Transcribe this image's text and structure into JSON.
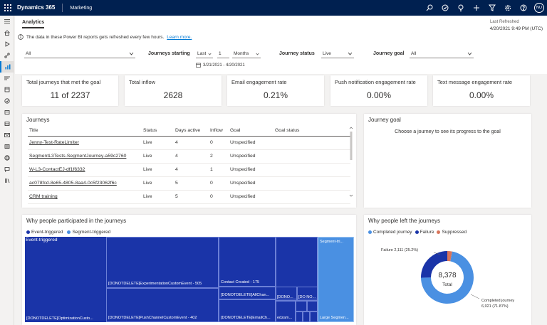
{
  "app": {
    "brand": "Dynamics 365",
    "module": "Marketing",
    "avatar_initials": "NU"
  },
  "topbar_icons": [
    "search-icon",
    "task-icon",
    "lightbulb-icon",
    "add-icon",
    "filter-icon",
    "settings-icon",
    "help-icon"
  ],
  "sidebar_icons": [
    "menu-icon",
    "home-icon",
    "play-icon",
    "journey-icon",
    "analytics-icon",
    "segment-icon",
    "event-icon",
    "form-icon",
    "page-icon",
    "mail-icon",
    "template-icon",
    "tag-icon",
    "chat-icon",
    "library-icon"
  ],
  "header": {
    "tab": "Analytics",
    "last_refreshed_label": "Last Refreshed",
    "last_refreshed_value": "4/20/2021 9:49 PM (UTC)",
    "notice_text": "The data in these Power BI reports gets refreshed every few hours.",
    "notice_link": "Learn more."
  },
  "filters": {
    "journey_select": "All",
    "journeys_starting_label": "Journeys starting",
    "period_select": "Last",
    "period_count": "1",
    "period_unit": "Months",
    "journey_status_label": "Journey status",
    "journey_status_value": "Live",
    "journey_goal_label": "Journey goal",
    "journey_goal_value": "All",
    "date_range": "3/21/2021 - 4/20/2021"
  },
  "kpis": [
    {
      "title": "Total journeys that met the goal",
      "value": "11 of 2237"
    },
    {
      "title": "Total inflow",
      "value": "2628"
    },
    {
      "title": "Email engagement rate",
      "value": "0.21%"
    },
    {
      "title": "Push notification engagement rate",
      "value": "0.00%"
    },
    {
      "title": "Text message engagement rate",
      "value": "0.00%"
    }
  ],
  "journeys": {
    "title": "Journeys",
    "columns": [
      "Title",
      "Status",
      "Days active",
      "Inflow",
      "Goal",
      "Goal status"
    ],
    "rows": [
      [
        "Jenny-Test-RateLimiter",
        "Live",
        "4",
        "0",
        "Unspecified",
        ""
      ],
      [
        "SegmentL3Tests-SegmentJourney-a59c2760",
        "Live",
        "4",
        "2",
        "Unspecified",
        ""
      ],
      [
        "W-L3-ContactEJ-df1f6332",
        "Live",
        "4",
        "1",
        "Unspecified",
        ""
      ],
      [
        "ac078fcd-8e65-4805-8aa4-0c5f23062f6c",
        "Live",
        "5",
        "0",
        "Unspecified",
        ""
      ],
      [
        "CRM training",
        "Live",
        "5",
        "0",
        "Unspecified",
        ""
      ]
    ]
  },
  "journey_goal": {
    "title": "Journey goal",
    "message": "Choose a journey to see its progress to the goal"
  },
  "participation": {
    "title": "Why people participated in the journeys",
    "legend": [
      {
        "label": "Event-triggered",
        "color": "#1a34a8"
      },
      {
        "label": "Segment-triggered",
        "color": "#4a90e2"
      }
    ],
    "tiles": {
      "event_triggered": "Event-triggered",
      "opt_custom": "[DONOTDELETE]OptimizationCusto...",
      "exp_custom": "[DONOTDELETE]ExperimentationCustomEvent - 505",
      "push_channel": "[DONOTDELETE]PushChannelCustomEvent - 402",
      "contact_created": "Contact Created - 175",
      "all_chan": "[DONOTDELETE]AllChan...",
      "email_ch": "[DONOTDELETE]EmailCh...",
      "dono1": "[DONO...",
      "dono2": "[DO NO...",
      "edzam": "edzam...",
      "segment_tri": "Segment-tri...",
      "large_segment": "Large Segmen..."
    }
  },
  "left_reasons": {
    "title": "Why people left the journeys",
    "legend": [
      {
        "label": "Completed journey",
        "color": "#4a90e2"
      },
      {
        "label": "Failure",
        "color": "#1a34a8"
      },
      {
        "label": "Suppressed",
        "color": "#d9745a"
      }
    ],
    "total_value": "8,378",
    "total_label": "Total",
    "failure_label": "Failure 2,111 (25.2%)",
    "completed_label": "Completed journey",
    "completed_value": "6,021 (71.87%)"
  },
  "chart_data": {
    "type": "pie",
    "categories": [
      "Completed journey",
      "Failure",
      "Suppressed"
    ],
    "values": [
      6021,
      2111,
      246
    ],
    "title": "Why people left the journeys",
    "total": 8378
  }
}
